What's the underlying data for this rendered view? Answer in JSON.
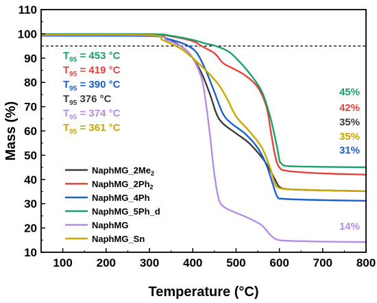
{
  "chart_data": {
    "type": "line",
    "xlabel": "Temperature (°C)",
    "ylabel": "Mass (%)",
    "xlim": [
      50,
      800
    ],
    "ylim": [
      10,
      110
    ],
    "xticks": [
      100,
      200,
      300,
      400,
      500,
      600,
      700,
      800
    ],
    "yticks": [
      10,
      20,
      30,
      40,
      50,
      60,
      70,
      80,
      90,
      100,
      110
    ],
    "reference_line": {
      "y": 95,
      "style": "dashed"
    },
    "legend": {
      "placement": "bottom-left"
    },
    "series": [
      {
        "name": "NaphMG_2Me₂",
        "color": "#3a3a3a",
        "x": [
          50,
          300,
          340,
          380,
          400,
          420,
          440,
          455,
          470,
          500,
          530,
          560,
          575,
          590,
          600,
          620,
          700,
          800
        ],
        "y": [
          99.5,
          99.4,
          98,
          94,
          90,
          84,
          75,
          67,
          63,
          59,
          55,
          49,
          45,
          40,
          37,
          36,
          35.5,
          35.2
        ]
      },
      {
        "name": "NaphMG_2Ph₂",
        "color": "#e8413c",
        "x": [
          50,
          300,
          350,
          400,
          420,
          450,
          470,
          490,
          520,
          550,
          570,
          580,
          590,
          600,
          620,
          700,
          800
        ],
        "y": [
          99.8,
          99.7,
          99,
          97,
          95,
          92,
          88,
          86,
          83,
          78,
          70,
          60,
          50,
          45,
          43.5,
          42.5,
          42
        ]
      },
      {
        "name": "NaphMG_4Ph",
        "color": "#1a5fd0",
        "x": [
          50,
          300,
          340,
          370,
          390,
          410,
          430,
          450,
          470,
          490,
          520,
          550,
          570,
          585,
          595,
          610,
          700,
          800
        ],
        "y": [
          99.2,
          99.1,
          98,
          96.5,
          95,
          92,
          85,
          76,
          67,
          63,
          59,
          53,
          46,
          38,
          33,
          32,
          31.5,
          31.2
        ]
      },
      {
        "name": "NaphMG_5Ph_d",
        "color": "#18a069",
        "x": [
          50,
          300,
          350,
          400,
          430,
          453,
          480,
          500,
          530,
          560,
          580,
          595,
          600,
          605,
          620,
          700,
          800
        ],
        "y": [
          99.9,
          99.9,
          99.2,
          97.5,
          96,
          95,
          93,
          90,
          84,
          76,
          65,
          53,
          48,
          46.5,
          45.5,
          45.2,
          45
        ]
      },
      {
        "name": "NaphMG",
        "color": "#b58be6",
        "x": [
          50,
          300,
          340,
          360,
          380,
          400,
          420,
          430,
          440,
          450,
          460,
          470,
          490,
          530,
          560,
          580,
          600,
          650,
          700,
          800
        ],
        "y": [
          99.5,
          99.4,
          97.5,
          96,
          94,
          90,
          82,
          72,
          58,
          42,
          32,
          29,
          27,
          24,
          21,
          17,
          15,
          14.6,
          14.4,
          14.2
        ]
      },
      {
        "name": "NaphMG_Sn",
        "color": "#c8a800",
        "x": [
          50,
          300,
          330,
          361,
          380,
          400,
          430,
          460,
          480,
          500,
          530,
          560,
          580,
          590,
          600,
          620,
          700,
          800
        ],
        "y": [
          99.6,
          99.5,
          97.5,
          95,
          93,
          90,
          85,
          79,
          73,
          66,
          60,
          53,
          44,
          38,
          36.5,
          36,
          35.5,
          35.2
        ]
      }
    ],
    "t95_annotations": [
      {
        "subscript": "95",
        "value": "= 453 °C",
        "color": "#18a069"
      },
      {
        "subscript": "95",
        "value": "= 419 °C",
        "color": "#e8413c"
      },
      {
        "subscript": "95",
        "value": "= 390 °C",
        "color": "#1a5fd0"
      },
      {
        "subscript": "95",
        "value": "376 °C",
        "color": "#3a3a3a"
      },
      {
        "subscript": "95",
        "value": "= 374 °C",
        "color": "#b58be6"
      },
      {
        "subscript": "95",
        "value": "= 361 °C",
        "color": "#c8a800"
      }
    ],
    "residue_labels": [
      {
        "text": "45%",
        "color": "#18a069"
      },
      {
        "text": "42%",
        "color": "#e8413c"
      },
      {
        "text": "35%",
        "color": "#3a3a3a"
      },
      {
        "text": "35%",
        "color": "#c8a800"
      },
      {
        "text": "31%",
        "color": "#1a5fd0"
      },
      {
        "text": "14%",
        "color": "#b58be6"
      }
    ]
  }
}
